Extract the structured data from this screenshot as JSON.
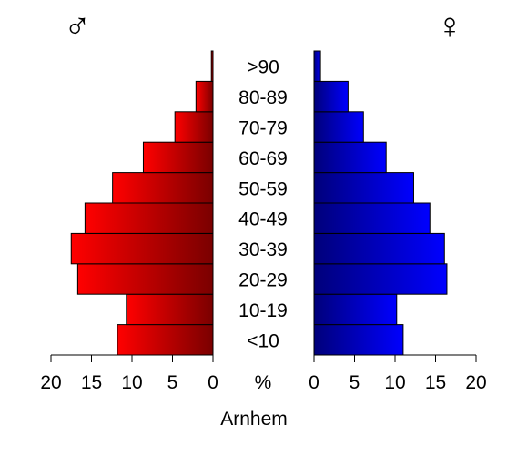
{
  "chart_data": {
    "type": "bar",
    "title": "Arnhem",
    "center_label": "%",
    "male_symbol": "♂",
    "female_symbol": "♀",
    "categories": [
      "<10",
      "10-19",
      "20-29",
      "30-39",
      "40-49",
      "50-59",
      "60-69",
      "70-79",
      "80-89",
      ">90"
    ],
    "series": [
      {
        "name": "male",
        "values": [
          11.8,
          10.7,
          16.7,
          17.5,
          15.8,
          12.4,
          8.6,
          4.7,
          2.1,
          0.2
        ]
      },
      {
        "name": "female",
        "values": [
          11.0,
          10.2,
          16.4,
          16.1,
          14.3,
          12.3,
          8.9,
          6.1,
          4.2,
          0.8
        ]
      }
    ],
    "xlim": [
      0,
      20
    ],
    "ticks": [
      0,
      5,
      10,
      15,
      20
    ],
    "colors": {
      "male_light": "#ff0000",
      "male_dark": "#7a0000",
      "female_light": "#0000ff",
      "female_dark": "#00007a"
    }
  }
}
